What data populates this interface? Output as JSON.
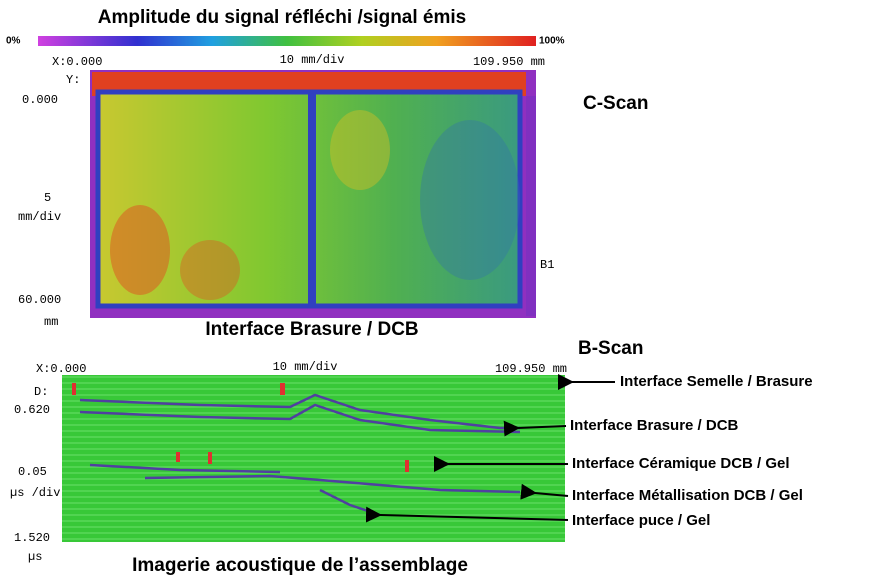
{
  "header": {
    "title": "Amplitude du signal réfléchi /signal émis"
  },
  "colorbar": {
    "min_label": "0%",
    "max_label": "100%"
  },
  "c_scan": {
    "label": "C-Scan",
    "x_start": "X:0.000",
    "x_scale": "10 mm/div",
    "x_end": "109.950 mm",
    "y_label": "Y:",
    "y_start": "0.000",
    "y_scale": "5",
    "y_scale_unit": "mm/div",
    "y_end": "60.000",
    "y_end_unit": "mm",
    "marker": "B1",
    "caption": "Interface Brasure / DCB"
  },
  "b_scan": {
    "label": "B-Scan",
    "x_start": "X:0.000",
    "x_scale": "10 mm/div",
    "x_end": "109.950 mm",
    "y_label": "D:",
    "y_start": "0.620",
    "y_scale": "0.05",
    "y_scale_unit": "µs /div",
    "y_end": "1.520",
    "y_end_unit": "µs"
  },
  "annotations": [
    "Interface Semelle / Brasure",
    "Interface Brasure / DCB",
    "Interface Céramique DCB / Gel",
    "Interface Métallisation DCB / Gel",
    "Interface puce / Gel"
  ],
  "caption": "Imagerie acoustique de l’assemblage"
}
